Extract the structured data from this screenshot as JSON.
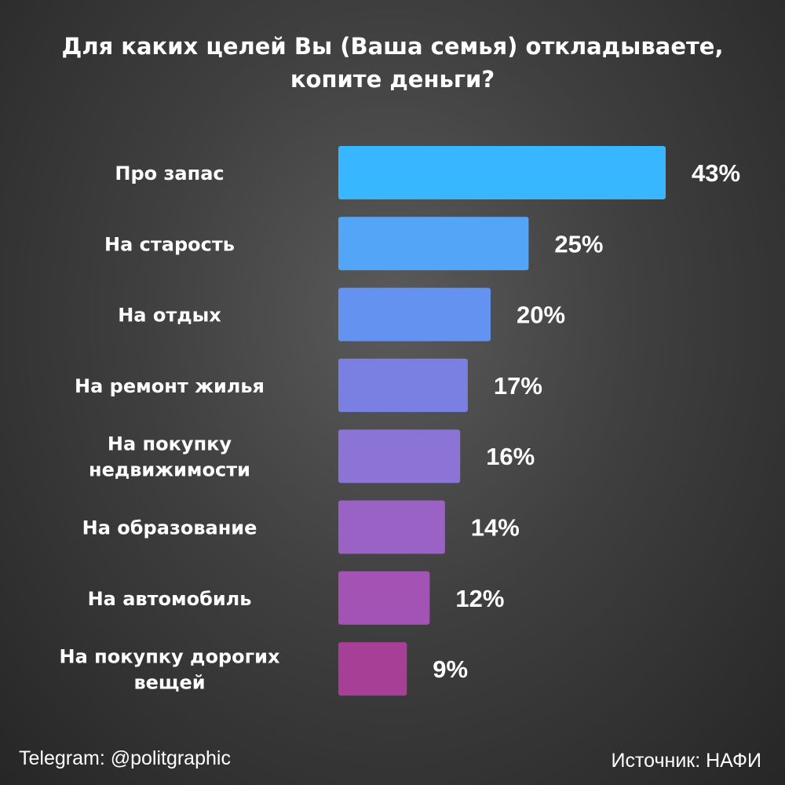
{
  "chart_data": {
    "type": "bar",
    "orientation": "horizontal",
    "title_lines": [
      "Для каких целей Вы (Ваша семья) откладываете,",
      "копите деньги?"
    ],
    "categories": [
      [
        "Про запас"
      ],
      [
        "На старость"
      ],
      [
        "На отдых"
      ],
      [
        "На ремонт жилья"
      ],
      [
        "На покупку",
        "недвижимости"
      ],
      [
        "На образование"
      ],
      [
        "На автомобиль"
      ],
      [
        "На покупку дорогих",
        "вещей"
      ]
    ],
    "values": [
      43,
      25,
      20,
      17,
      16,
      14,
      12,
      9
    ],
    "value_labels": [
      "43%",
      "25%",
      "20%",
      "17%",
      "16%",
      "14%",
      "12%",
      "9%"
    ],
    "colors": [
      "#38b6ff",
      "#52a5f7",
      "#6492f0",
      "#7a80e2",
      "#8c73d6",
      "#9b62c6",
      "#a253b4",
      "#a83f96"
    ],
    "xlim": [
      0,
      43
    ],
    "grid": false,
    "legend": "none"
  },
  "footer": {
    "left": "Telegram: @politgraphic",
    "right": "Источник: НАФИ"
  }
}
